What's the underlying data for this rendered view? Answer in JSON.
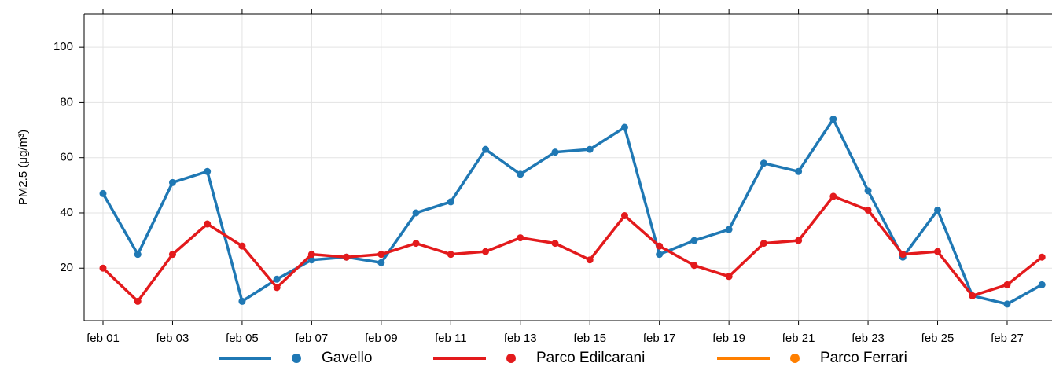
{
  "chart_data": {
    "type": "line",
    "y_label": "PM2.5 (μg/m³)",
    "categories": [
      "feb 01",
      null,
      "feb 03",
      null,
      "feb 05",
      null,
      "feb 07",
      null,
      "feb 09",
      null,
      "feb 11",
      null,
      "feb 13",
      null,
      "feb 15",
      null,
      "feb 17",
      null,
      "feb 19",
      null,
      "feb 21",
      null,
      "feb 23",
      null,
      "feb 25",
      null,
      "feb 27",
      null
    ],
    "series": [
      {
        "name": "Gavello",
        "color": "#1f78b4",
        "values": [
          47,
          25,
          51,
          55,
          8,
          16,
          23,
          24,
          22,
          40,
          44,
          63,
          54,
          62,
          63,
          71,
          25,
          30,
          34,
          58,
          55,
          74,
          48,
          24,
          41,
          10,
          7,
          14
        ]
      },
      {
        "name": "Parco Edilcarani",
        "color": "#e31a1c",
        "values": [
          20,
          8,
          25,
          36,
          28,
          13,
          25,
          24,
          25,
          29,
          25,
          26,
          31,
          29,
          23,
          39,
          28,
          21,
          17,
          29,
          30,
          46,
          41,
          25,
          26,
          10,
          14,
          24
        ]
      },
      {
        "name": "Parco Ferrari",
        "color": "#ff7f00",
        "values": [
          null,
          null,
          null,
          null,
          null,
          null,
          null,
          null,
          null,
          null,
          null,
          null,
          null,
          null,
          null,
          null,
          null,
          null,
          null,
          null,
          null,
          null,
          null,
          null,
          null,
          null,
          null,
          null
        ]
      }
    ],
    "ylim": [
      1,
      112
    ],
    "yticks": [
      20,
      40,
      60,
      80,
      100
    ],
    "grid": true,
    "legend": "bottom"
  }
}
